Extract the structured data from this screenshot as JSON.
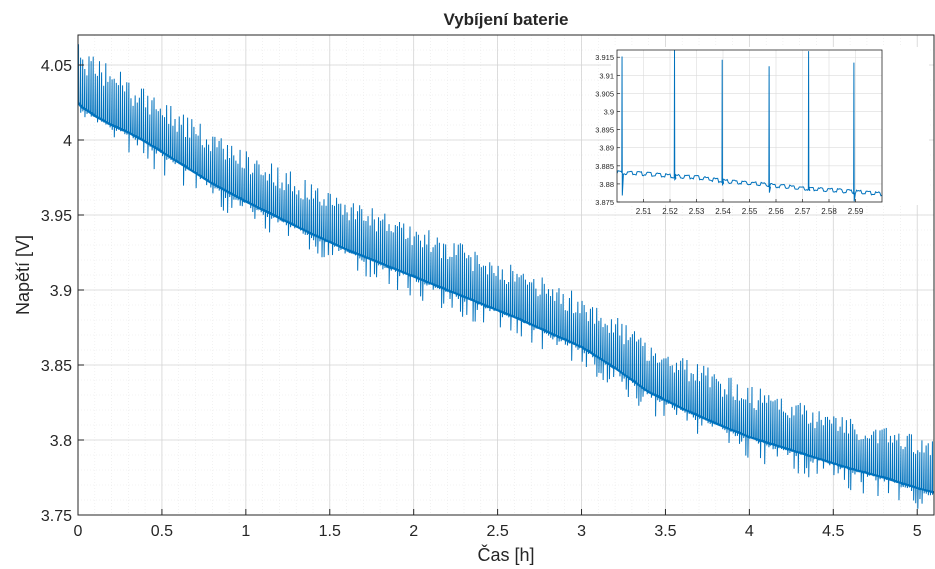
{
  "chart_data": [
    {
      "type": "line",
      "title": "Vybíjení baterie",
      "xlabel": "Čas [h]",
      "ylabel": "Napětí [V]",
      "xlim": [
        0,
        5.1
      ],
      "ylim": [
        3.75,
        4.07
      ],
      "x_ticks": [
        0,
        0.5,
        1,
        1.5,
        2,
        2.5,
        3,
        3.5,
        4,
        4.5,
        5
      ],
      "x_tick_labels": [
        "0",
        "0.5",
        "1",
        "1.5",
        "2",
        "2.5",
        "3",
        "3.5",
        "4",
        "4.5",
        "5"
      ],
      "y_ticks": [
        3.75,
        3.8,
        3.85,
        3.9,
        3.95,
        4,
        4.05
      ],
      "y_tick_labels": [
        "3.75",
        "3.8",
        "3.85",
        "3.9",
        "3.95",
        "4",
        "4.05"
      ],
      "grid": true,
      "minor_grid": true,
      "line_color": "#0072bd",
      "series": [
        {
          "x": [
            0,
            0.02,
            0.05,
            0.1,
            0.2,
            0.3,
            0.4,
            0.5,
            0.6,
            0.7,
            0.8,
            0.9,
            1.0,
            1.2,
            1.4,
            1.6,
            1.8,
            2.0,
            2.2,
            2.4,
            2.6,
            2.8,
            3.0,
            3.2,
            3.4,
            3.6,
            3.8,
            4.0,
            4.2,
            4.4,
            4.6,
            4.8,
            5.0,
            5.1
          ],
          "y": [
            4.025,
            4.022,
            4.02,
            4.016,
            4.01,
            4.005,
            3.999,
            3.992,
            3.985,
            3.978,
            3.971,
            3.965,
            3.959,
            3.948,
            3.937,
            3.927,
            3.918,
            3.909,
            3.9,
            3.891,
            3.882,
            3.872,
            3.862,
            3.848,
            3.832,
            3.821,
            3.811,
            3.802,
            3.795,
            3.788,
            3.781,
            3.775,
            3.768,
            3.765
          ],
          "spike_amplitude_v": 0.035,
          "dip_amplitude_v": 0.015
        }
      ]
    },
    {
      "type": "line",
      "title": "",
      "xlabel": "",
      "ylabel": "",
      "xlim": [
        2.5,
        2.6
      ],
      "ylim": [
        3.875,
        3.917
      ],
      "x_ticks": [
        2.51,
        2.52,
        2.53,
        2.54,
        2.55,
        2.56,
        2.57,
        2.58,
        2.59
      ],
      "x_tick_labels": [
        "2.51",
        "2.52",
        "2.53",
        "2.54",
        "2.55",
        "2.56",
        "2.57",
        "2.58",
        "2.59"
      ],
      "y_ticks": [
        3.875,
        3.88,
        3.885,
        3.89,
        3.895,
        3.9,
        3.905,
        3.91,
        3.915
      ],
      "y_tick_labels": [
        "3.875",
        "3.88",
        "3.885",
        "3.89",
        "3.895",
        "3.9",
        "3.905",
        "3.91",
        "3.915"
      ],
      "grid": true,
      "line_color": "#0072bd",
      "series": [
        {
          "x": [
            2.5,
            2.51,
            2.52,
            2.53,
            2.54,
            2.55,
            2.56,
            2.57,
            2.58,
            2.59,
            2.6
          ],
          "y": [
            3.8832,
            3.8828,
            3.8822,
            3.8818,
            3.8808,
            3.8802,
            3.8795,
            3.8788,
            3.8783,
            3.8778,
            3.8772
          ],
          "spikes": [
            {
              "x": 2.5019,
              "peak": 3.9152,
              "dip": 3.8768
            },
            {
              "x": 2.5217,
              "peak": 3.917,
              "dip": 3.8812
            },
            {
              "x": 2.5397,
              "peak": 3.9143,
              "dip": 3.8798
            },
            {
              "x": 2.5574,
              "peak": 3.9125,
              "dip": 3.8776
            },
            {
              "x": 2.5723,
              "peak": 3.9167,
              "dip": 3.8785
            },
            {
              "x": 2.5894,
              "peak": 3.9135,
              "dip": 3.8752
            }
          ]
        }
      ]
    }
  ]
}
